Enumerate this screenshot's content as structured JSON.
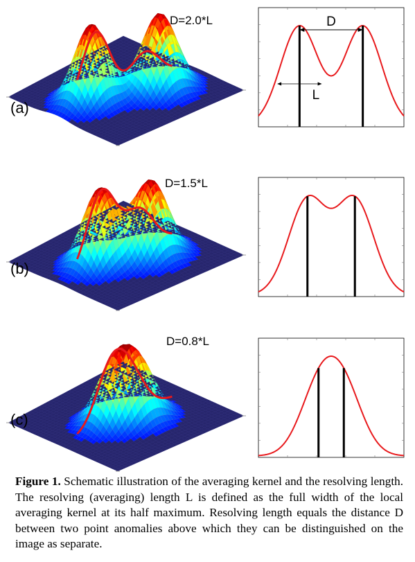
{
  "panels": [
    {
      "tag": "(a)",
      "separation_label": "D=2.0*L",
      "separation": 2.0,
      "profile_annotations": {
        "D": "D",
        "L": "L"
      }
    },
    {
      "tag": "(b)",
      "separation_label": "D=1.5*L",
      "separation": 1.5
    },
    {
      "tag": "(c)",
      "separation_label": "D=0.8*L",
      "separation": 0.8
    }
  ],
  "colors": {
    "curve": "#e8191c",
    "peak_line": "#000000",
    "surface_base": "#27266d",
    "frame": "#000000"
  },
  "caption": {
    "label": "Figure 1.",
    "text": "Schematic illustration of the averaging kernel and the resolving length. The resolving (averaging) length L is defined as the full width of the local averaging kernel at its half maximum. Resolving length equals the distance D between two point anomalies above which they can be distinguished on the image as separate."
  }
}
